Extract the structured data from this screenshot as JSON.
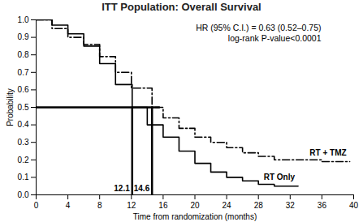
{
  "chart_data": {
    "type": "line",
    "title": "ITT Population: Overall Survival",
    "x_label": "Time from randomization (months)",
    "y_label": "Probability",
    "xlim": [
      0,
      40
    ],
    "xticks": [
      0,
      4,
      8,
      12,
      16,
      20,
      24,
      28,
      32,
      36,
      40
    ],
    "ylim": [
      0,
      1
    ],
    "yticks": [
      {
        "value": 0,
        "label": "0.0"
      },
      {
        "value": 0.1,
        "label": "0.1"
      },
      {
        "value": 0.2,
        "label": "0.2"
      },
      {
        "value": 0.3,
        "label": "0.3"
      },
      {
        "value": 0.4,
        "label": "0.4"
      },
      {
        "value": 0.5,
        "label": "0.5"
      },
      {
        "value": 0.6,
        "label": "0.6"
      },
      {
        "value": 0.7,
        "label": "0.7"
      },
      {
        "value": 0.8,
        "label": "0.8"
      },
      {
        "value": 0.9,
        "label": "0.9"
      },
      {
        "value": 1,
        "label": "1.0"
      }
    ],
    "grid": false,
    "series": [
      {
        "name": "RT + TMZ",
        "color": "#000000",
        "line_style": "dashdot",
        "x": [
          0,
          2,
          4,
          6,
          8,
          10,
          12,
          14.6,
          16,
          18,
          20,
          22,
          24,
          26,
          28,
          30,
          34,
          36,
          39.5
        ],
        "values": [
          1.0,
          0.95,
          0.9,
          0.86,
          0.79,
          0.7,
          0.61,
          0.5,
          0.44,
          0.38,
          0.33,
          0.3,
          0.27,
          0.24,
          0.22,
          0.2,
          0.2,
          0.19,
          0.19
        ]
      },
      {
        "name": "RT Only",
        "color": "#000000",
        "line_style": "solid",
        "x": [
          0,
          2,
          4,
          6,
          8,
          10,
          12.1,
          14,
          16,
          18,
          20,
          22,
          24,
          26,
          28,
          30,
          33
        ],
        "values": [
          1.0,
          0.97,
          0.92,
          0.85,
          0.75,
          0.63,
          0.5,
          0.4,
          0.33,
          0.25,
          0.18,
          0.13,
          0.1,
          0.08,
          0.06,
          0.05,
          0.05
        ]
      }
    ],
    "medians": [
      12.1,
      14.6
    ],
    "reference_line": {
      "y": 0.5,
      "x_end": 15.5
    },
    "annotations": [
      "HR (95% C.I.) = 0.63 (0.52–0.75)",
      "log-rank P-value<0.0001"
    ]
  }
}
